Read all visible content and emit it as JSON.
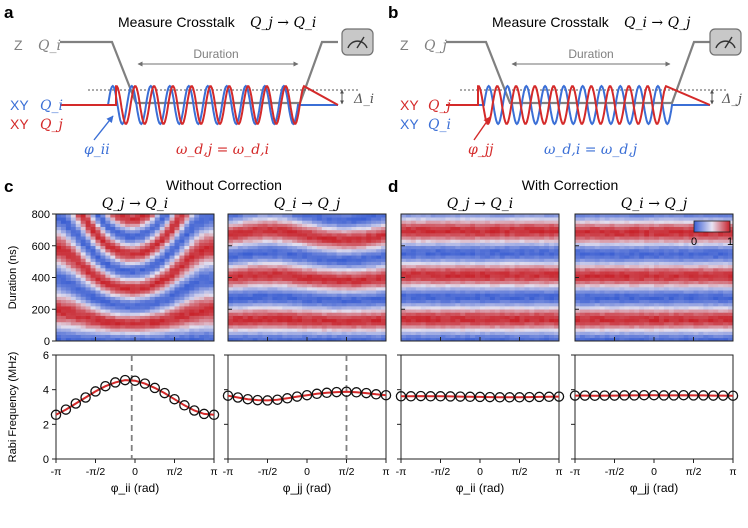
{
  "panels": {
    "a": {
      "letter": "a",
      "title": "Measure Crosstalk",
      "arrow_label": "Q_j → Q_i",
      "z_label": "Z",
      "z_qubit": "Q_i",
      "duration_label": "Duration",
      "xy_rows": [
        {
          "prefix": "XY",
          "qubit": "Q_i",
          "color": "#3b6fd6"
        },
        {
          "prefix": "XY",
          "qubit": "Q_j",
          "color": "#d42a2a"
        }
      ],
      "phase_label": "φ_ii",
      "phase_color": "#3b6fd6",
      "freq_label": "ω_d,j = ω_d,i",
      "delta_label": "Δ_i"
    },
    "b": {
      "letter": "b",
      "title": "Measure Crosstalk",
      "arrow_label": "Q_i → Q_j",
      "z_label": "Z",
      "z_qubit": "Q_j",
      "duration_label": "Duration",
      "xy_rows": [
        {
          "prefix": "XY",
          "qubit": "Q_j",
          "color": "#d42a2a"
        },
        {
          "prefix": "XY",
          "qubit": "Q_i",
          "color": "#3b6fd6"
        }
      ],
      "phase_label": "φ_jj",
      "phase_color": "#d42a2a",
      "freq_label": "ω_d,i = ω_d,j",
      "delta_label": "Δ_j"
    },
    "c": {
      "letter": "c",
      "group_title": "Without Correction"
    },
    "d": {
      "letter": "d",
      "group_title": "With Correction"
    }
  },
  "colors": {
    "red": "#d42a2a",
    "blue": "#3b6fd6",
    "gray": "#808080",
    "fit_line": "#d42a2a"
  },
  "chart_data": [
    {
      "type": "heatmap",
      "title": "Q_j → Q_i",
      "xlabel": "",
      "ylabel": "Duration (ns)",
      "xlim": [
        -3.1416,
        3.1416
      ],
      "ylim": [
        0,
        800
      ],
      "yticks": [
        "0",
        "200",
        "400",
        "600",
        "800"
      ],
      "colorbar": {
        "min": "0",
        "max": "1"
      },
      "pattern": "curved",
      "center": -0.13,
      "rabi_peak_mhz": 4.55,
      "rabi_edge_mhz": 2.55
    },
    {
      "type": "heatmap",
      "title": "Q_i → Q_j",
      "xlim": [
        -3.1416,
        3.1416
      ],
      "ylim": [
        0,
        800
      ],
      "pattern": "weak",
      "center": 1.57,
      "rabi_mhz": [
        3.6,
        3.9
      ]
    },
    {
      "type": "heatmap",
      "title": "Q_j → Q_i",
      "xlim": [
        -3.1416,
        3.1416
      ],
      "ylim": [
        0,
        800
      ],
      "pattern": "flat",
      "rabi_mhz": 3.6
    },
    {
      "type": "heatmap",
      "title": "Q_i → Q_j",
      "xlim": [
        -3.1416,
        3.1416
      ],
      "ylim": [
        0,
        800
      ],
      "pattern": "flat",
      "rabi_mhz": 3.65,
      "colorbar": {
        "min": "0",
        "max": "1"
      }
    },
    {
      "type": "scatter",
      "xlabel": "φ_ii (rad)",
      "ylabel": "Rabi Frequency (MHz)",
      "xlim": [
        -3.1416,
        3.1416
      ],
      "ylim": [
        0,
        6
      ],
      "xticks": [
        "-π",
        "-π/2",
        "0",
        "π/2",
        "π"
      ],
      "yticks": [
        "0",
        "2",
        "4",
        "6"
      ],
      "x": [
        -3.1416,
        -2.7489,
        -2.3562,
        -1.9635,
        -1.5708,
        -1.1781,
        -0.7854,
        -0.3927,
        0,
        0.3927,
        0.7854,
        1.1781,
        1.5708,
        1.9635,
        2.3562,
        2.7489,
        3.1416
      ],
      "y": [
        2.55,
        2.85,
        3.2,
        3.55,
        3.9,
        4.2,
        4.42,
        4.55,
        4.52,
        4.35,
        4.1,
        3.8,
        3.45,
        3.1,
        2.8,
        2.6,
        2.55
      ],
      "vline": -0.13
    },
    {
      "type": "scatter",
      "xlabel": "φ_jj (rad)",
      "xlim": [
        -3.1416,
        3.1416
      ],
      "ylim": [
        0,
        6
      ],
      "xticks": [
        "-π",
        "-π/2",
        "0",
        "π/2",
        "π"
      ],
      "x": [
        -3.1416,
        -2.7489,
        -2.3562,
        -1.9635,
        -1.5708,
        -1.1781,
        -0.7854,
        -0.3927,
        0,
        0.3927,
        0.7854,
        1.1781,
        1.5708,
        1.9635,
        2.3562,
        2.7489,
        3.1416
      ],
      "y": [
        3.65,
        3.55,
        3.45,
        3.4,
        3.38,
        3.42,
        3.5,
        3.6,
        3.68,
        3.76,
        3.82,
        3.86,
        3.88,
        3.85,
        3.8,
        3.73,
        3.68
      ],
      "vline": 1.57
    },
    {
      "type": "scatter",
      "xlabel": "φ_ii (rad)",
      "xlim": [
        -3.1416,
        3.1416
      ],
      "ylim": [
        0,
        6
      ],
      "xticks": [
        "-π",
        "-π/2",
        "0",
        "π/2",
        "π"
      ],
      "x": [
        -3.1416,
        -2.7489,
        -2.3562,
        -1.9635,
        -1.5708,
        -1.1781,
        -0.7854,
        -0.3927,
        0,
        0.3927,
        0.7854,
        1.1781,
        1.5708,
        1.9635,
        2.3562,
        2.7489,
        3.1416
      ],
      "y": [
        3.62,
        3.62,
        3.63,
        3.62,
        3.62,
        3.61,
        3.6,
        3.59,
        3.58,
        3.57,
        3.56,
        3.56,
        3.56,
        3.57,
        3.58,
        3.59,
        3.6
      ]
    },
    {
      "type": "scatter",
      "xlabel": "φ_jj (rad)",
      "xlim": [
        -3.1416,
        3.1416
      ],
      "ylim": [
        0,
        6
      ],
      "xticks": [
        "-π",
        "-π/2",
        "0",
        "π/2",
        "π"
      ],
      "x": [
        -3.1416,
        -2.7489,
        -2.3562,
        -1.9635,
        -1.5708,
        -1.1781,
        -0.7854,
        -0.3927,
        0,
        0.3927,
        0.7854,
        1.1781,
        1.5708,
        1.9635,
        2.3562,
        2.7489,
        3.1416
      ],
      "y": [
        3.66,
        3.66,
        3.65,
        3.66,
        3.66,
        3.67,
        3.67,
        3.68,
        3.68,
        3.67,
        3.67,
        3.68,
        3.67,
        3.67,
        3.66,
        3.66,
        3.65
      ]
    }
  ]
}
